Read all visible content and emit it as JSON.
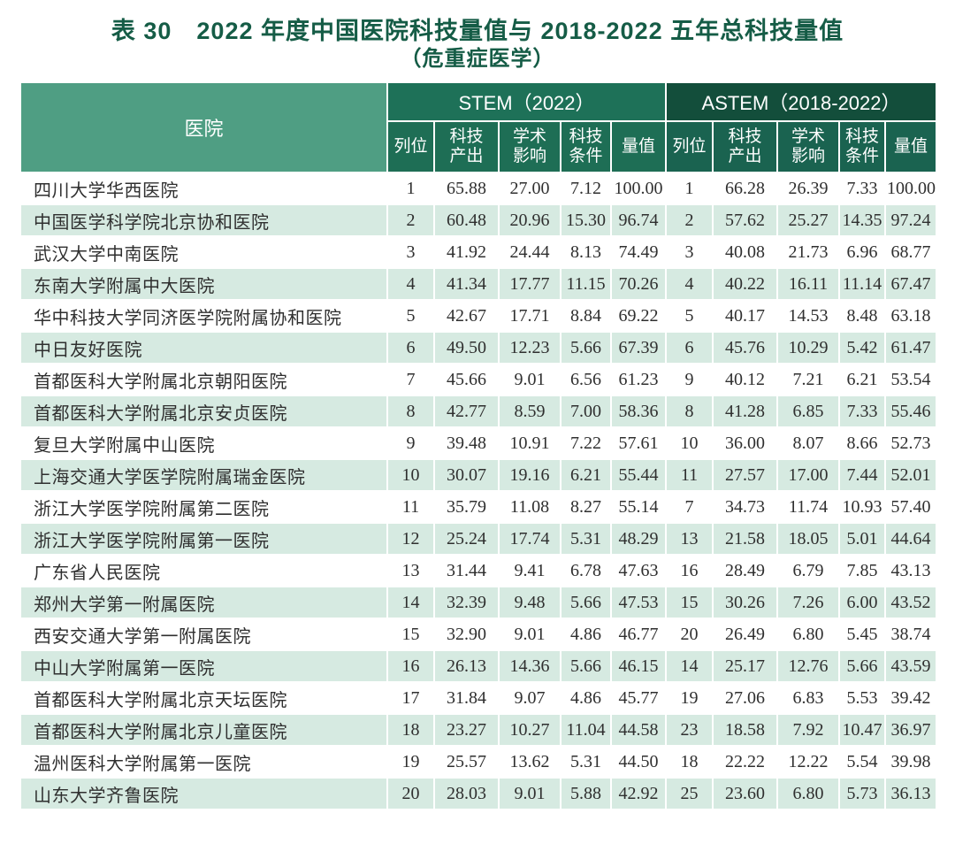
{
  "title": {
    "line1": "表 30　2022 年度中国医院科技量值与 2018-2022 五年总科技量值",
    "line2": "（危重症医学）"
  },
  "colors": {
    "title_green": "#155c46",
    "hospital_header_bg": "#4f9e83",
    "stem_header_bg": "#1e7158",
    "stem_subheader_bg": "#1e6e55",
    "astem_header_bg": "#134e3b",
    "astem_subheader_bg": "#1a6350",
    "stripe_green": "#d6eae1",
    "body_text": "#2f2f2f"
  },
  "table": {
    "hospital_header": "医院",
    "stem_header": "STEM（2022）",
    "astem_header": "ASTEM（2018-2022）",
    "sub_headers": [
      "列位",
      "科技\n产出",
      "学术\n影响",
      "科技\n条件",
      "量值",
      "列位",
      "科技\n产出",
      "学术\n影响",
      "科技\n条件",
      "量值"
    ],
    "rows": [
      [
        "四川大学华西医院",
        "1",
        "65.88",
        "27.00",
        "7.12",
        "100.00",
        "1",
        "66.28",
        "26.39",
        "7.33",
        "100.00"
      ],
      [
        "中国医学科学院北京协和医院",
        "2",
        "60.48",
        "20.96",
        "15.30",
        "96.74",
        "2",
        "57.62",
        "25.27",
        "14.35",
        "97.24"
      ],
      [
        "武汉大学中南医院",
        "3",
        "41.92",
        "24.44",
        "8.13",
        "74.49",
        "3",
        "40.08",
        "21.73",
        "6.96",
        "68.77"
      ],
      [
        "东南大学附属中大医院",
        "4",
        "41.34",
        "17.77",
        "11.15",
        "70.26",
        "4",
        "40.22",
        "16.11",
        "11.14",
        "67.47"
      ],
      [
        "华中科技大学同济医学院附属协和医院",
        "5",
        "42.67",
        "17.71",
        "8.84",
        "69.22",
        "5",
        "40.17",
        "14.53",
        "8.48",
        "63.18"
      ],
      [
        "中日友好医院",
        "6",
        "49.50",
        "12.23",
        "5.66",
        "67.39",
        "6",
        "45.76",
        "10.29",
        "5.42",
        "61.47"
      ],
      [
        "首都医科大学附属北京朝阳医院",
        "7",
        "45.66",
        "9.01",
        "6.56",
        "61.23",
        "9",
        "40.12",
        "7.21",
        "6.21",
        "53.54"
      ],
      [
        "首都医科大学附属北京安贞医院",
        "8",
        "42.77",
        "8.59",
        "7.00",
        "58.36",
        "8",
        "41.28",
        "6.85",
        "7.33",
        "55.46"
      ],
      [
        "复旦大学附属中山医院",
        "9",
        "39.48",
        "10.91",
        "7.22",
        "57.61",
        "10",
        "36.00",
        "8.07",
        "8.66",
        "52.73"
      ],
      [
        "上海交通大学医学院附属瑞金医院",
        "10",
        "30.07",
        "19.16",
        "6.21",
        "55.44",
        "11",
        "27.57",
        "17.00",
        "7.44",
        "52.01"
      ],
      [
        "浙江大学医学院附属第二医院",
        "11",
        "35.79",
        "11.08",
        "8.27",
        "55.14",
        "7",
        "34.73",
        "11.74",
        "10.93",
        "57.40"
      ],
      [
        "浙江大学医学院附属第一医院",
        "12",
        "25.24",
        "17.74",
        "5.31",
        "48.29",
        "13",
        "21.58",
        "18.05",
        "5.01",
        "44.64"
      ],
      [
        "广东省人民医院",
        "13",
        "31.44",
        "9.41",
        "6.78",
        "47.63",
        "16",
        "28.49",
        "6.79",
        "7.85",
        "43.13"
      ],
      [
        "郑州大学第一附属医院",
        "14",
        "32.39",
        "9.48",
        "5.66",
        "47.53",
        "15",
        "30.26",
        "7.26",
        "6.00",
        "43.52"
      ],
      [
        "西安交通大学第一附属医院",
        "15",
        "32.90",
        "9.01",
        "4.86",
        "46.77",
        "20",
        "26.49",
        "6.80",
        "5.45",
        "38.74"
      ],
      [
        "中山大学附属第一医院",
        "16",
        "26.13",
        "14.36",
        "5.66",
        "46.15",
        "14",
        "25.17",
        "12.76",
        "5.66",
        "43.59"
      ],
      [
        "首都医科大学附属北京天坛医院",
        "17",
        "31.84",
        "9.07",
        "4.86",
        "45.77",
        "19",
        "27.06",
        "6.83",
        "5.53",
        "39.42"
      ],
      [
        "首都医科大学附属北京儿童医院",
        "18",
        "23.27",
        "10.27",
        "11.04",
        "44.58",
        "23",
        "18.58",
        "7.92",
        "10.47",
        "36.97"
      ],
      [
        "温州医科大学附属第一医院",
        "19",
        "25.57",
        "13.62",
        "5.31",
        "44.50",
        "18",
        "22.22",
        "12.22",
        "5.54",
        "39.98"
      ],
      [
        "山东大学齐鲁医院",
        "20",
        "28.03",
        "9.01",
        "5.88",
        "42.92",
        "25",
        "23.60",
        "6.80",
        "5.73",
        "36.13"
      ]
    ]
  }
}
